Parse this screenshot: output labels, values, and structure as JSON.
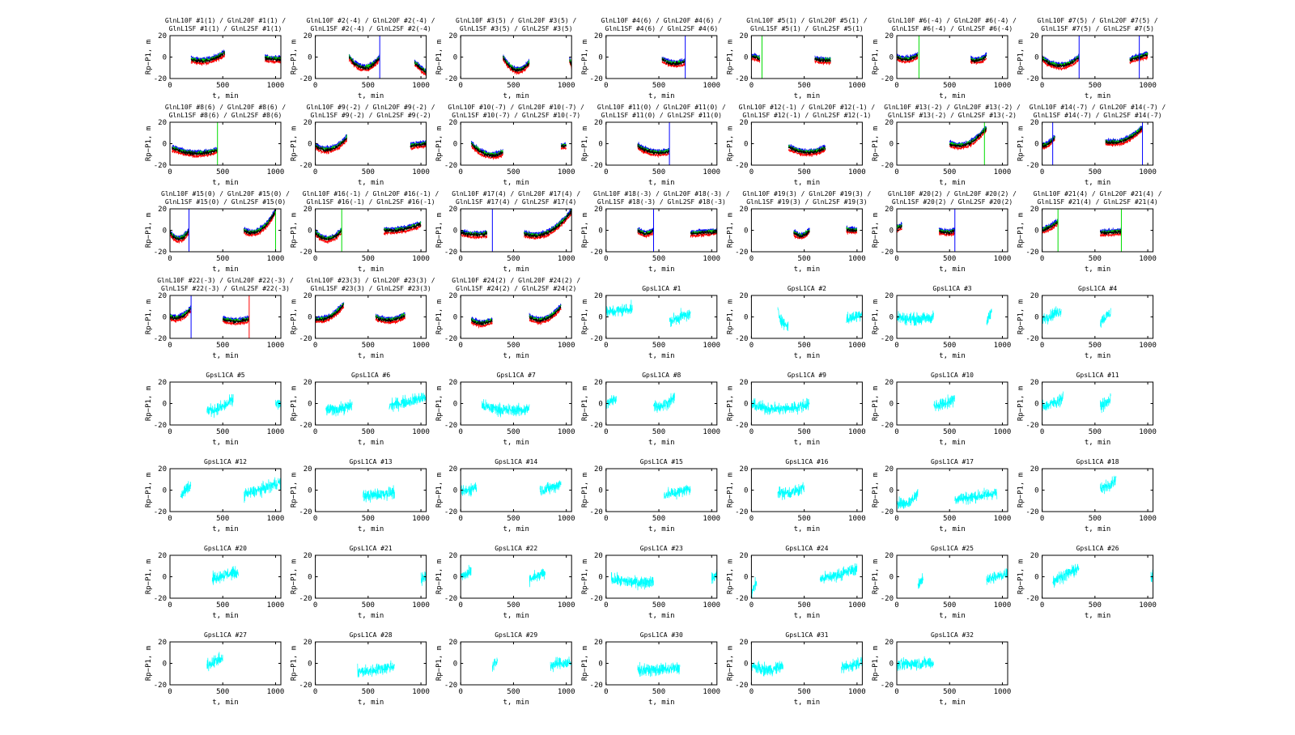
{
  "chart_data": {
    "type": "line",
    "layout": "grid of small multiples, 7 columns",
    "xlabel": "t, min",
    "ylabel": "Rp−P1, m",
    "xlim": [
      0,
      1050
    ],
    "ylim": [
      -20,
      20
    ],
    "xticks": [
      "0",
      "500",
      "1000"
    ],
    "yticks": [
      "20",
      "0",
      "-20"
    ],
    "grid": false,
    "glonass_colors": [
      "#0000ff",
      "#ff0000",
      "#00dd00",
      "#000000"
    ],
    "gps_color": "#00ffff",
    "segment_format": "[t_start, t_end, y_start, y_mid, y_end]",
    "plots": [
      {
        "title": "GlnL10F #1(1) / GlnL20F #1(1) / GlnL1SF #1(1) / GlnL2SF #1(1)",
        "kind": "gln",
        "segments": [
          [
            200,
            520,
            -2,
            -3,
            4
          ],
          [
            900,
            1050,
            -1,
            -2,
            -2
          ]
        ],
        "spikes": []
      },
      {
        "title": "GlnL10F #2(-4) / GlnL20F #2(-4) / GlnL1SF #2(-4) / GlnL2SF #2(-4)",
        "kind": "gln",
        "segments": [
          [
            320,
            610,
            0,
            -10,
            0
          ],
          [
            940,
            1050,
            -5,
            -10,
            -15
          ]
        ],
        "spikes": [
          [
            610,
            "#0000ff"
          ]
        ]
      },
      {
        "title": "GlnL10F #3(5) / GlnL20F #3(5) / GlnL1SF #3(5) / GlnL2SF #3(5)",
        "kind": "gln",
        "segments": [
          [
            400,
            650,
            0,
            -12,
            -5
          ],
          [
            1030,
            1050,
            -3,
            -5,
            -8
          ]
        ],
        "spikes": []
      },
      {
        "title": "GlnL10F #4(6) / GlnL20F #4(6) / GlnL1SF #4(6) / GlnL2SF #4(6)",
        "kind": "gln",
        "segments": [
          [
            530,
            750,
            -2,
            -6,
            -4
          ]
        ],
        "spikes": [
          [
            750,
            "#0000ff"
          ]
        ]
      },
      {
        "title": "GlnL10F #5(1) / GlnL20F #5(1) / GlnL1SF #5(1) / GlnL2SF #5(1)",
        "kind": "gln",
        "segments": [
          [
            0,
            80,
            0,
            0,
            -2
          ],
          [
            600,
            750,
            -2,
            -3,
            -3
          ]
        ],
        "spikes": [
          [
            100,
            "#00dd00"
          ]
        ]
      },
      {
        "title": "GlnL10F #6(-4) / GlnL20F #6(-4) / GlnL1SF #6(-4) / GlnL2SF #6(-4)",
        "kind": "gln",
        "segments": [
          [
            0,
            200,
            0,
            -2,
            2
          ],
          [
            700,
            850,
            -2,
            -3,
            1
          ]
        ],
        "spikes": [
          [
            210,
            "#00dd00"
          ]
        ]
      },
      {
        "title": "GlnL10F #7(5) / GlnL20F #7(5) / GlnL1SF #7(5) / GlnL2SF #7(5)",
        "kind": "gln",
        "segments": [
          [
            0,
            350,
            -1,
            -8,
            0
          ],
          [
            830,
            1000,
            -3,
            0,
            2
          ]
        ],
        "spikes": [
          [
            350,
            "#0000ff"
          ],
          [
            920,
            "#0000ff"
          ]
        ]
      },
      {
        "title": "GlnL10F #8(6) / GlnL20F #8(6) / GlnL1SF #8(6) / GlnL2SF #8(6)",
        "kind": "gln",
        "segments": [
          [
            20,
            450,
            -4,
            -9,
            -6
          ]
        ],
        "spikes": [
          [
            450,
            "#00dd00"
          ]
        ]
      },
      {
        "title": "GlnL10F #9(-2) / GlnL20F #9(-2) / GlnL1SF #9(-2) / GlnL2SF #9(-2)",
        "kind": "gln",
        "segments": [
          [
            0,
            300,
            -2,
            -5,
            6
          ],
          [
            900,
            1050,
            -2,
            -1,
            0
          ]
        ],
        "spikes": []
      },
      {
        "title": "GlnL10F #10(-7) / GlnL20F #10(-7) / GlnL1SF #10(-7) / GlnL2SF #10(-7)",
        "kind": "gln",
        "segments": [
          [
            100,
            400,
            0,
            -10,
            -8
          ],
          [
            950,
            1000,
            -2,
            -2,
            -2
          ]
        ],
        "spikes": []
      },
      {
        "title": "GlnL10F #11(0) / GlnL20F #11(0) / GlnL1SF #11(0) / GlnL2SF #11(0)",
        "kind": "gln",
        "segments": [
          [
            300,
            600,
            -2,
            -8,
            -7
          ]
        ],
        "spikes": [
          [
            600,
            "#0000ff"
          ]
        ]
      },
      {
        "title": "GlnL10F #12(-1) / GlnL20F #12(-1) / GlnL1SF #12(-1) / GlnL2SF #12(-1)",
        "kind": "gln",
        "segments": [
          [
            350,
            700,
            -3,
            -8,
            -4
          ]
        ],
        "spikes": []
      },
      {
        "title": "GlnL10F #13(-2) / GlnL20F #13(-2) / GlnL1SF #13(-2) / GlnL2SF #13(-2)",
        "kind": "gln",
        "segments": [
          [
            500,
            850,
            0,
            0,
            15
          ]
        ],
        "spikes": [
          [
            830,
            "#00dd00"
          ]
        ]
      },
      {
        "title": "GlnL10F #14(-7) / GlnL20F #14(-7) / GlnL1SF #14(-7) / GlnL2SF #14(-7)",
        "kind": "gln",
        "segments": [
          [
            0,
            120,
            -2,
            0,
            6
          ],
          [
            600,
            950,
            2,
            3,
            15
          ]
        ],
        "spikes": [
          [
            100,
            "#0000ff"
          ],
          [
            950,
            "#0000ff"
          ]
        ]
      },
      {
        "title": "GlnL10F #15(0) / GlnL20F #15(0) / GlnL1SF #15(0) / GlnL2SF #15(0)",
        "kind": "gln",
        "segments": [
          [
            0,
            180,
            -2,
            -8,
            0
          ],
          [
            700,
            1000,
            0,
            0,
            18
          ]
        ],
        "spikes": [
          [
            180,
            "#0000ff"
          ],
          [
            1000,
            "#00dd00"
          ]
        ]
      },
      {
        "title": "GlnL10F #16(-1) / GlnL20F #16(-1) / GlnL1SF #16(-1) / GlnL2SF #16(-1)",
        "kind": "gln",
        "segments": [
          [
            0,
            250,
            -2,
            -8,
            0
          ],
          [
            650,
            1000,
            0,
            1,
            6
          ]
        ],
        "spikes": [
          [
            250,
            "#00dd00"
          ]
        ]
      },
      {
        "title": "GlnL10F #17(4) / GlnL20F #17(4) / GlnL1SF #17(4) / GlnL2SF #17(4)",
        "kind": "gln",
        "segments": [
          [
            0,
            250,
            -2,
            -4,
            -3
          ],
          [
            600,
            1050,
            -3,
            -2,
            18
          ]
        ],
        "spikes": [
          [
            300,
            "#0000ff"
          ]
        ]
      },
      {
        "title": "GlnL10F #18(-3) / GlnL20F #18(-3) / GlnL1SF #18(-3) / GlnL2SF #18(-3)",
        "kind": "gln",
        "segments": [
          [
            300,
            450,
            0,
            -3,
            0
          ],
          [
            800,
            1050,
            -3,
            -2,
            -1
          ]
        ],
        "spikes": [
          [
            450,
            "#0000ff"
          ]
        ]
      },
      {
        "title": "GlnL10F #19(3) / GlnL20F #19(3) / GlnL1SF #19(3) / GlnL2SF #19(3)",
        "kind": "gln",
        "segments": [
          [
            400,
            550,
            -2,
            -5,
            0
          ],
          [
            900,
            1000,
            1,
            0,
            0
          ]
        ],
        "spikes": []
      },
      {
        "title": "GlnL10F #20(2) / GlnL20F #20(2) / GlnL1SF #20(2) / GlnL2SF #20(2)",
        "kind": "gln",
        "segments": [
          [
            0,
            50,
            2,
            3,
            4
          ],
          [
            400,
            550,
            0,
            -2,
            0
          ]
        ],
        "spikes": [
          [
            550,
            "#0000ff"
          ]
        ]
      },
      {
        "title": "GlnL10F #21(4) / GlnL20F #21(4) / GlnL1SF #21(4) / GlnL2SF #21(4)",
        "kind": "gln",
        "segments": [
          [
            0,
            150,
            0,
            3,
            8
          ],
          [
            550,
            750,
            -2,
            -2,
            -1
          ]
        ],
        "spikes": [
          [
            150,
            "#00dd00"
          ],
          [
            750,
            "#00dd00"
          ]
        ]
      },
      {
        "title": "GlnL10F #22(-3) / GlnL20F #22(-3) / GlnL1SF #22(-3) / GlnL2SF #22(-3)",
        "kind": "gln",
        "segments": [
          [
            0,
            200,
            0,
            0,
            8
          ],
          [
            500,
            750,
            -2,
            -4,
            -2
          ]
        ],
        "spikes": [
          [
            200,
            "#0000ff"
          ],
          [
            750,
            "#ff0000"
          ]
        ]
      },
      {
        "title": "GlnL10F #23(3) / GlnL20F #23(3) / GlnL1SF #23(3) / GlnL2SF #23(3)",
        "kind": "gln",
        "segments": [
          [
            0,
            270,
            -2,
            0,
            12
          ],
          [
            570,
            850,
            0,
            -3,
            2
          ]
        ],
        "spikes": []
      },
      {
        "title": "GlnL10F #24(2) / GlnL20F #24(2) / GlnL1SF #24(2) / GlnL2SF #24(2)",
        "kind": "gln",
        "segments": [
          [
            100,
            300,
            -3,
            -6,
            -3
          ],
          [
            650,
            950,
            0,
            -2,
            10
          ]
        ],
        "spikes": []
      },
      {
        "title": "GpsL1CA #1",
        "kind": "gps",
        "segments": [
          [
            0,
            250,
            4,
            6,
            8
          ],
          [
            600,
            800,
            -5,
            0,
            2
          ]
        ]
      },
      {
        "title": "GpsL1CA #2",
        "kind": "gps",
        "segments": [
          [
            250,
            350,
            5,
            -5,
            -8
          ],
          [
            900,
            1050,
            -2,
            0,
            4
          ]
        ]
      },
      {
        "title": "GpsL1CA #3",
        "kind": "gps",
        "segments": [
          [
            0,
            350,
            0,
            -2,
            0
          ],
          [
            850,
            900,
            -5,
            0,
            5
          ]
        ]
      },
      {
        "title": "GpsL1CA #4",
        "kind": "gps",
        "segments": [
          [
            0,
            180,
            -2,
            2,
            6
          ],
          [
            550,
            650,
            -5,
            0,
            4
          ]
        ]
      },
      {
        "title": "GpsL1CA #5",
        "kind": "gps",
        "segments": [
          [
            350,
            600,
            -6,
            -4,
            4
          ],
          [
            1000,
            1050,
            0,
            0,
            -3
          ]
        ]
      },
      {
        "title": "GpsL1CA #6",
        "kind": "gps",
        "segments": [
          [
            100,
            350,
            -6,
            -5,
            -2
          ],
          [
            700,
            1050,
            -2,
            2,
            6
          ]
        ]
      },
      {
        "title": "GpsL1CA #7",
        "kind": "gps",
        "segments": [
          [
            200,
            650,
            -2,
            -6,
            -5
          ]
        ]
      },
      {
        "title": "GpsL1CA #8",
        "kind": "gps",
        "segments": [
          [
            0,
            100,
            0,
            2,
            6
          ],
          [
            450,
            650,
            -2,
            -1,
            6
          ]
        ]
      },
      {
        "title": "GpsL1CA #9",
        "kind": "gps",
        "segments": [
          [
            0,
            550,
            -1,
            -5,
            0
          ]
        ]
      },
      {
        "title": "GpsL1CA #10",
        "kind": "gps",
        "segments": [
          [
            350,
            550,
            -2,
            0,
            4
          ]
        ]
      },
      {
        "title": "GpsL1CA #11",
        "kind": "gps",
        "segments": [
          [
            0,
            200,
            -2,
            0,
            6
          ],
          [
            550,
            650,
            -2,
            0,
            4
          ]
        ]
      },
      {
        "title": "GpsL1CA #12",
        "kind": "gps",
        "segments": [
          [
            100,
            200,
            -5,
            0,
            4
          ],
          [
            700,
            1050,
            -4,
            1,
            8
          ]
        ]
      },
      {
        "title": "GpsL1CA #13",
        "kind": "gps",
        "segments": [
          [
            450,
            750,
            -6,
            -4,
            -2
          ]
        ]
      },
      {
        "title": "GpsL1CA #14",
        "kind": "gps",
        "segments": [
          [
            0,
            150,
            -2,
            0,
            4
          ],
          [
            750,
            950,
            0,
            2,
            6
          ]
        ]
      },
      {
        "title": "GpsL1CA #15",
        "kind": "gps",
        "segments": [
          [
            550,
            800,
            -4,
            -2,
            2
          ]
        ]
      },
      {
        "title": "GpsL1CA #16",
        "kind": "gps",
        "segments": [
          [
            250,
            500,
            -2,
            -2,
            2
          ]
        ]
      },
      {
        "title": "GpsL1CA #17",
        "kind": "gps",
        "segments": [
          [
            0,
            200,
            -10,
            -12,
            -2
          ],
          [
            550,
            950,
            -8,
            -6,
            -2
          ]
        ]
      },
      {
        "title": "GpsL1CA #18",
        "kind": "gps",
        "segments": [
          [
            550,
            700,
            0,
            5,
            10
          ]
        ]
      },
      {
        "title": "GpsL1CA #20",
        "kind": "gps",
        "segments": [
          [
            400,
            650,
            -2,
            2,
            4
          ]
        ]
      },
      {
        "title": "GpsL1CA #21",
        "kind": "gps",
        "segments": [
          [
            1000,
            1050,
            -2,
            -1,
            0
          ]
        ]
      },
      {
        "title": "GpsL1CA #22",
        "kind": "gps",
        "segments": [
          [
            0,
            100,
            0,
            2,
            4
          ],
          [
            650,
            800,
            -2,
            0,
            4
          ]
        ]
      },
      {
        "title": "GpsL1CA #23",
        "kind": "gps",
        "segments": [
          [
            50,
            450,
            -2,
            -5,
            -4
          ],
          [
            1000,
            1050,
            -2,
            0,
            2
          ]
        ]
      },
      {
        "title": "GpsL1CA #24",
        "kind": "gps",
        "segments": [
          [
            0,
            50,
            -15,
            -10,
            -5
          ],
          [
            650,
            1000,
            -2,
            2,
            8
          ]
        ]
      },
      {
        "title": "GpsL1CA #25",
        "kind": "gps",
        "segments": [
          [
            200,
            250,
            -10,
            -5,
            0
          ],
          [
            850,
            1050,
            -2,
            0,
            4
          ]
        ]
      },
      {
        "title": "GpsL1CA #26",
        "kind": "gps",
        "segments": [
          [
            100,
            350,
            -4,
            2,
            8
          ],
          [
            1030,
            1050,
            -2,
            0,
            0
          ]
        ]
      },
      {
        "title": "GpsL1CA #27",
        "kind": "gps",
        "segments": [
          [
            350,
            500,
            -2,
            2,
            4
          ]
        ]
      },
      {
        "title": "GpsL1CA #28",
        "kind": "gps",
        "segments": [
          [
            400,
            750,
            -8,
            -6,
            -2
          ]
        ]
      },
      {
        "title": "GpsL1CA #29",
        "kind": "gps",
        "segments": [
          [
            300,
            350,
            -4,
            0,
            2
          ],
          [
            850,
            1050,
            -2,
            0,
            0
          ]
        ]
      },
      {
        "title": "GpsL1CA #30",
        "kind": "gps",
        "segments": [
          [
            300,
            700,
            -6,
            -6,
            -4
          ]
        ]
      },
      {
        "title": "GpsL1CA #31",
        "kind": "gps",
        "segments": [
          [
            0,
            300,
            -2,
            -6,
            -2
          ],
          [
            850,
            1050,
            -4,
            -2,
            2
          ]
        ]
      },
      {
        "title": "GpsL1CA #32",
        "kind": "gps",
        "segments": [
          [
            0,
            350,
            -2,
            0,
            0
          ]
        ]
      }
    ]
  }
}
